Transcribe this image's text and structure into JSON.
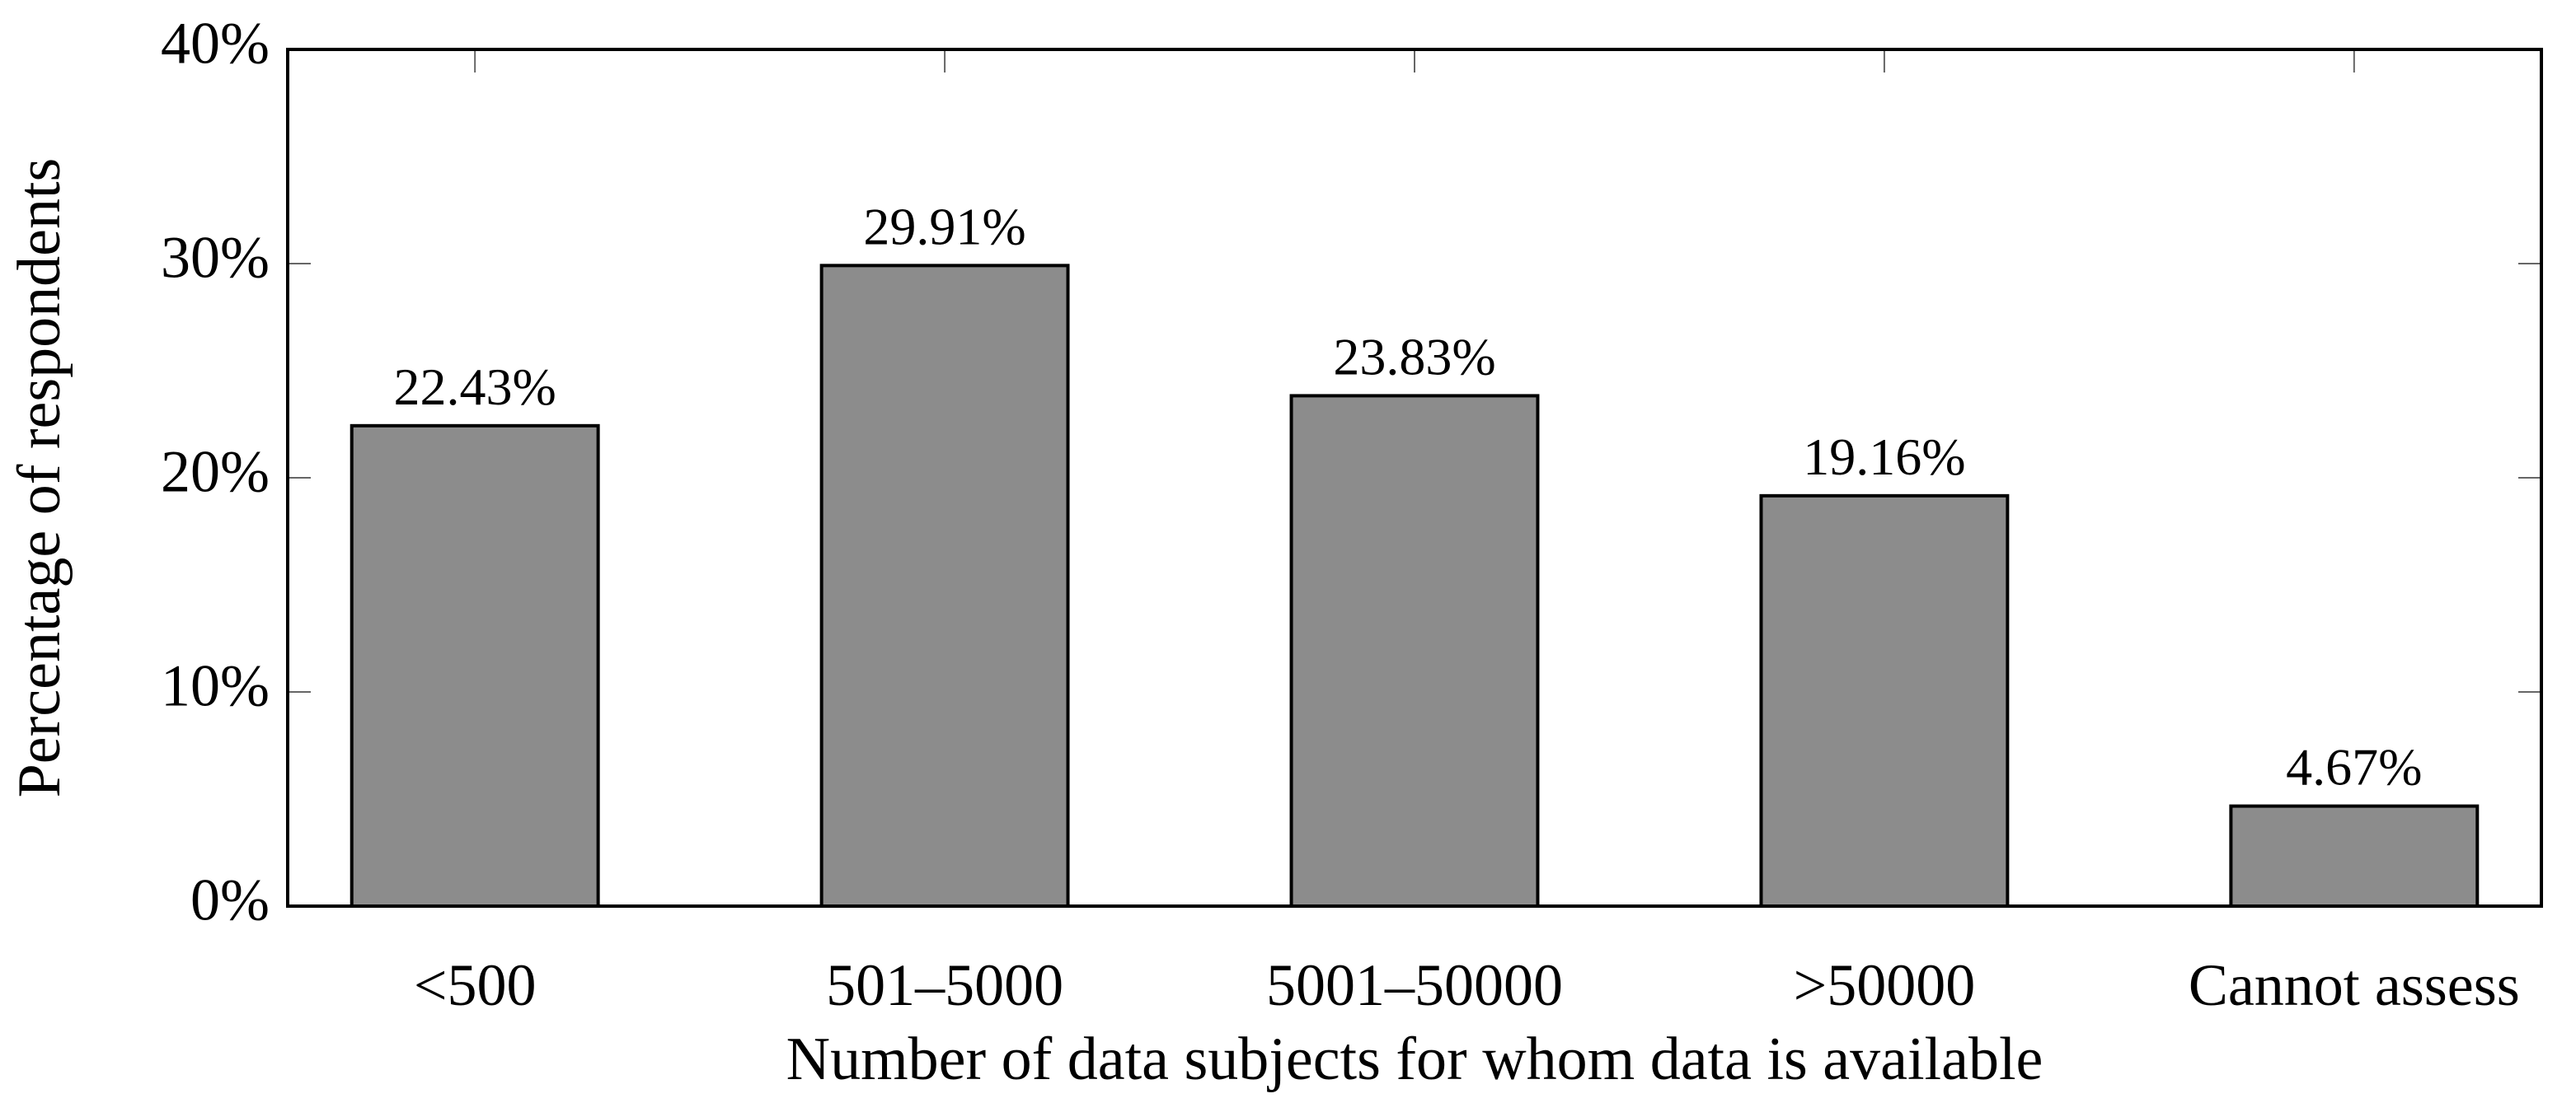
{
  "chart_data": {
    "type": "bar",
    "x_label": "Number of data subjects for whom data is available",
    "y_label": "Percentage of respondents",
    "categories": [
      "<500",
      "501–5000",
      "5001–50000",
      ">50000",
      "Cannot assess"
    ],
    "values": [
      22.43,
      29.91,
      23.83,
      19.16,
      4.67
    ],
    "value_labels": [
      "22.43%",
      "29.91%",
      "23.83%",
      "19.16%",
      "4.67%"
    ],
    "color": "#8c8c8c",
    "ylim": [
      0,
      40
    ],
    "yticks": [
      {
        "value": 0,
        "label": "0%"
      },
      {
        "value": 10,
        "label": "10%"
      },
      {
        "value": 20,
        "label": "20%"
      },
      {
        "value": 30,
        "label": "30%"
      },
      {
        "value": 40,
        "label": "40%"
      }
    ]
  }
}
